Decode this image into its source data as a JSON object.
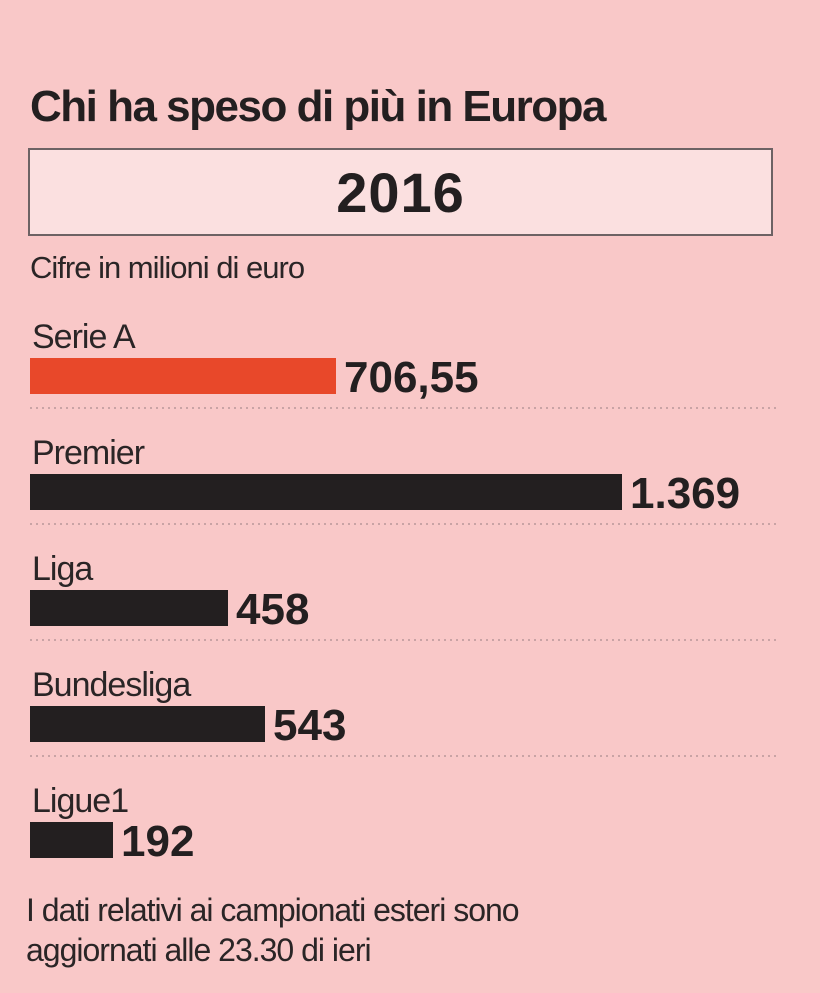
{
  "title": "Chi ha speso di più in Europa",
  "year": "2016",
  "unit_note": "Cifre in milioni di euro",
  "footnote": [
    "I dati relativi ai campionati esteri sono",
    "aggiornati alle 23.30 di ieri"
  ],
  "colors": {
    "background": "#f9c8c8",
    "highlight": "#e8482a",
    "bar": "#231f20"
  },
  "chart_data": {
    "type": "bar",
    "orientation": "horizontal",
    "categories": [
      "Serie A",
      "Premier",
      "Liga",
      "Bundesliga",
      "Ligue1"
    ],
    "values": [
      706.55,
      1369,
      458,
      543,
      192
    ],
    "value_labels": [
      "706,55",
      "1.369",
      "458",
      "543",
      "192"
    ],
    "highlight_index": 0,
    "title": "Chi ha speso di più in Europa",
    "subtitle": "2016",
    "ylabel": "Cifre in milioni di euro",
    "grid": false
  }
}
